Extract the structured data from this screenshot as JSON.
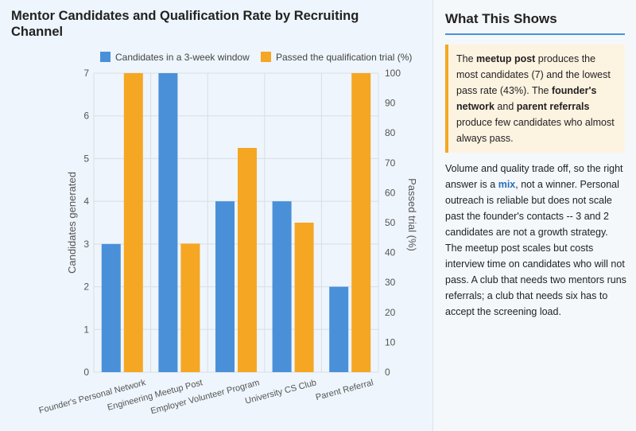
{
  "chart_data": {
    "type": "bar",
    "title": "Mentor Candidates and Qualification Rate by Recruiting Channel",
    "categories": [
      "Founder's Personal Network",
      "Engineering Meetup Post",
      "Employer Volunteer Program",
      "University CS Club",
      "Parent Referral"
    ],
    "series": [
      {
        "name": "Candidates in a 3-week window",
        "axis": "left",
        "color": "#4a90d9",
        "values": [
          3,
          7,
          4,
          4,
          2
        ]
      },
      {
        "name": "Passed the qualification trial (%)",
        "axis": "right",
        "color": "#f5a623",
        "values": [
          100,
          43,
          75,
          50,
          100
        ]
      }
    ],
    "ylabel": "Candidates generated",
    "y2label": "Passed trial (%)",
    "ylim": [
      0,
      7
    ],
    "y2lim": [
      0,
      100
    ],
    "yticks": [
      0,
      1,
      2,
      3,
      4,
      5,
      6,
      7
    ],
    "y2ticks": [
      0,
      10,
      20,
      30,
      40,
      50,
      60,
      70,
      80,
      90,
      100
    ],
    "grid": true,
    "legend": "top"
  },
  "sidebar": {
    "title": "What This Shows",
    "callout": {
      "p1": "The ",
      "b1": "meetup post",
      "p2": " produces the most candidates (7) and the lowest pass rate (43%). The ",
      "b2": "founder's network",
      "p3": " and ",
      "b3": "parent referrals",
      "p4": " produce few candidates who almost always pass."
    },
    "body": {
      "p1": "Volume and quality trade off, so the right answer is a ",
      "hl": "mix",
      "p2": ", not a winner. Personal outreach is reliable but does not scale past the founder's contacts -- 3 and 2 candidates are not a growth strategy. The meetup post scales but costs interview time on candidates who will not pass. A club that needs two mentors runs referrals; a club that needs six has to accept the screening load."
    }
  }
}
